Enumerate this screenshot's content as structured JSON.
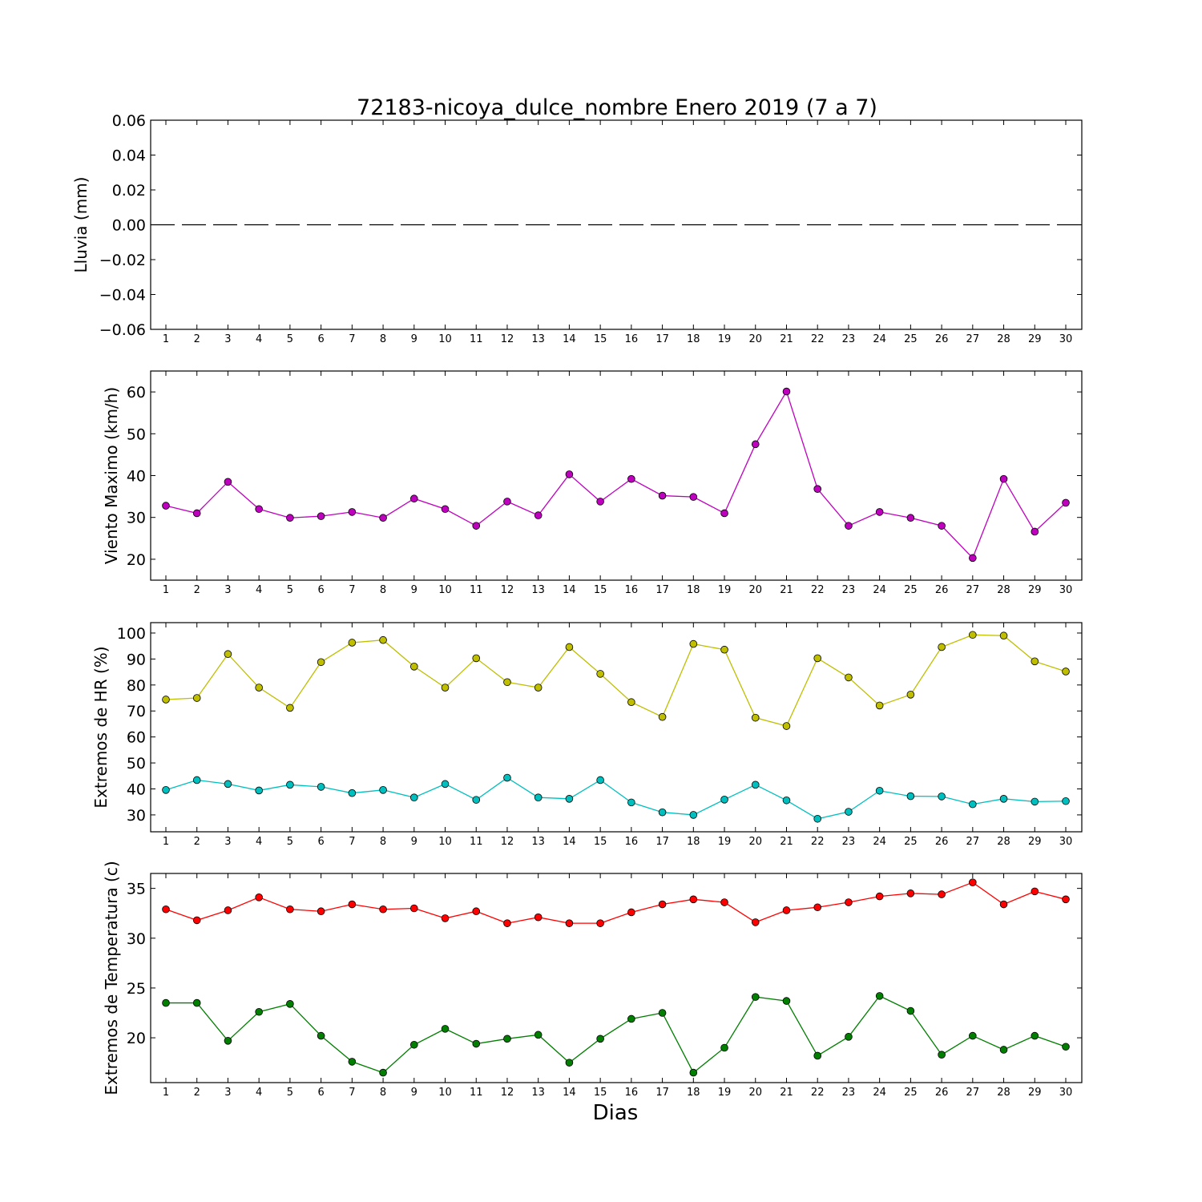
{
  "chart_data": {
    "title": "72183-nicoya_dulce_nombre Enero 2019  (7 a 7)",
    "xlabel": "Dias",
    "days": [
      1,
      2,
      3,
      4,
      5,
      6,
      7,
      8,
      9,
      10,
      11,
      12,
      13,
      14,
      15,
      16,
      17,
      18,
      19,
      20,
      21,
      22,
      23,
      24,
      25,
      26,
      27,
      28,
      29,
      30
    ],
    "panels": [
      {
        "type": "line",
        "ylabel": "Lluvia (mm)",
        "ylim": [
          -0.06,
          0.06
        ],
        "yticks": [
          -0.06,
          -0.04,
          -0.02,
          0.0,
          0.02,
          0.04,
          0.06
        ],
        "ytick_labels": [
          "−0.06",
          "−0.04",
          "−0.02",
          "0.00",
          "0.02",
          "0.04",
          "0.06"
        ],
        "series": [
          {
            "color": "#000000",
            "style": "dashed",
            "marker": "none",
            "values": [
              0,
              0,
              0,
              0,
              0,
              0,
              0,
              0,
              0,
              0,
              0,
              0,
              0,
              0,
              0,
              0,
              0,
              0,
              0,
              0,
              0,
              0,
              0,
              0,
              0,
              0,
              0,
              0,
              0,
              0
            ]
          }
        ]
      },
      {
        "type": "line",
        "ylabel": "Viento Maximo (km/h)",
        "ylim": [
          15,
          65
        ],
        "yticks": [
          20,
          30,
          40,
          50,
          60
        ],
        "ytick_labels": [
          "20",
          "30",
          "40",
          "50",
          "60"
        ],
        "series": [
          {
            "color": "#bf00bf",
            "style": "solid",
            "marker": "circle",
            "values": [
              32.8,
              31.0,
              38.5,
              32.0,
              29.9,
              30.3,
              31.3,
              29.9,
              34.5,
              32.0,
              28.0,
              33.8,
              30.5,
              40.3,
              33.8,
              39.2,
              35.2,
              34.9,
              31.0,
              47.5,
              60.1,
              36.8,
              28.0,
              31.3,
              29.9,
              28.0,
              20.3,
              39.2,
              26.6,
              33.5
            ]
          }
        ]
      },
      {
        "type": "line",
        "ylabel": "Extremos de HR (%)",
        "ylim": [
          23.5,
          104
        ],
        "yticks": [
          30,
          40,
          50,
          60,
          70,
          80,
          90,
          100
        ],
        "ytick_labels": [
          "30",
          "40",
          "50",
          "60",
          "70",
          "80",
          "90",
          "100"
        ],
        "series": [
          {
            "color": "#bfbf00",
            "style": "solid",
            "marker": "circle",
            "values": [
              74.4,
              75.0,
              91.9,
              79.0,
              71.2,
              88.8,
              96.3,
              97.3,
              87.1,
              79.0,
              90.3,
              81.1,
              79.0,
              94.6,
              84.3,
              73.4,
              67.7,
              95.8,
              93.6,
              67.4,
              64.2,
              90.3,
              82.9,
              72.1,
              76.3,
              94.6,
              99.3,
              99.0,
              89.1,
              85.2
            ]
          },
          {
            "color": "#00bfbf",
            "style": "solid",
            "marker": "circle",
            "values": [
              39.6,
              43.4,
              41.9,
              39.4,
              41.6,
              40.8,
              38.4,
              39.6,
              36.7,
              41.9,
              35.8,
              44.3,
              36.7,
              36.2,
              43.4,
              34.8,
              31.0,
              30.0,
              35.9,
              41.6,
              35.6,
              28.5,
              31.2,
              39.3,
              37.2,
              37.1,
              34.1,
              36.2,
              35.1,
              35.3
            ]
          }
        ]
      },
      {
        "type": "line",
        "ylabel": "Extremos de Temperatura (c)",
        "ylim": [
          15.5,
          36.5
        ],
        "yticks": [
          20,
          25,
          30,
          35
        ],
        "ytick_labels": [
          "20",
          "25",
          "30",
          "35"
        ],
        "series": [
          {
            "color": "#ff0000",
            "style": "solid",
            "marker": "circle",
            "values": [
              32.9,
              31.8,
              32.8,
              34.1,
              32.9,
              32.7,
              33.4,
              32.9,
              33.0,
              32.0,
              32.7,
              31.5,
              32.1,
              31.5,
              31.5,
              32.6,
              33.4,
              33.9,
              33.6,
              31.6,
              32.8,
              33.1,
              33.6,
              34.2,
              34.5,
              34.4,
              35.6,
              33.4,
              34.7,
              33.9
            ]
          },
          {
            "color": "#007f00",
            "style": "solid",
            "marker": "circle",
            "values": [
              23.5,
              23.5,
              19.7,
              22.6,
              23.4,
              20.2,
              17.6,
              16.5,
              19.3,
              20.9,
              19.4,
              19.9,
              20.3,
              17.5,
              19.9,
              21.9,
              22.5,
              16.5,
              19.0,
              24.1,
              23.7,
              18.2,
              20.1,
              24.2,
              22.7,
              18.3,
              20.2,
              18.8,
              20.2,
              19.1
            ]
          }
        ]
      }
    ]
  }
}
